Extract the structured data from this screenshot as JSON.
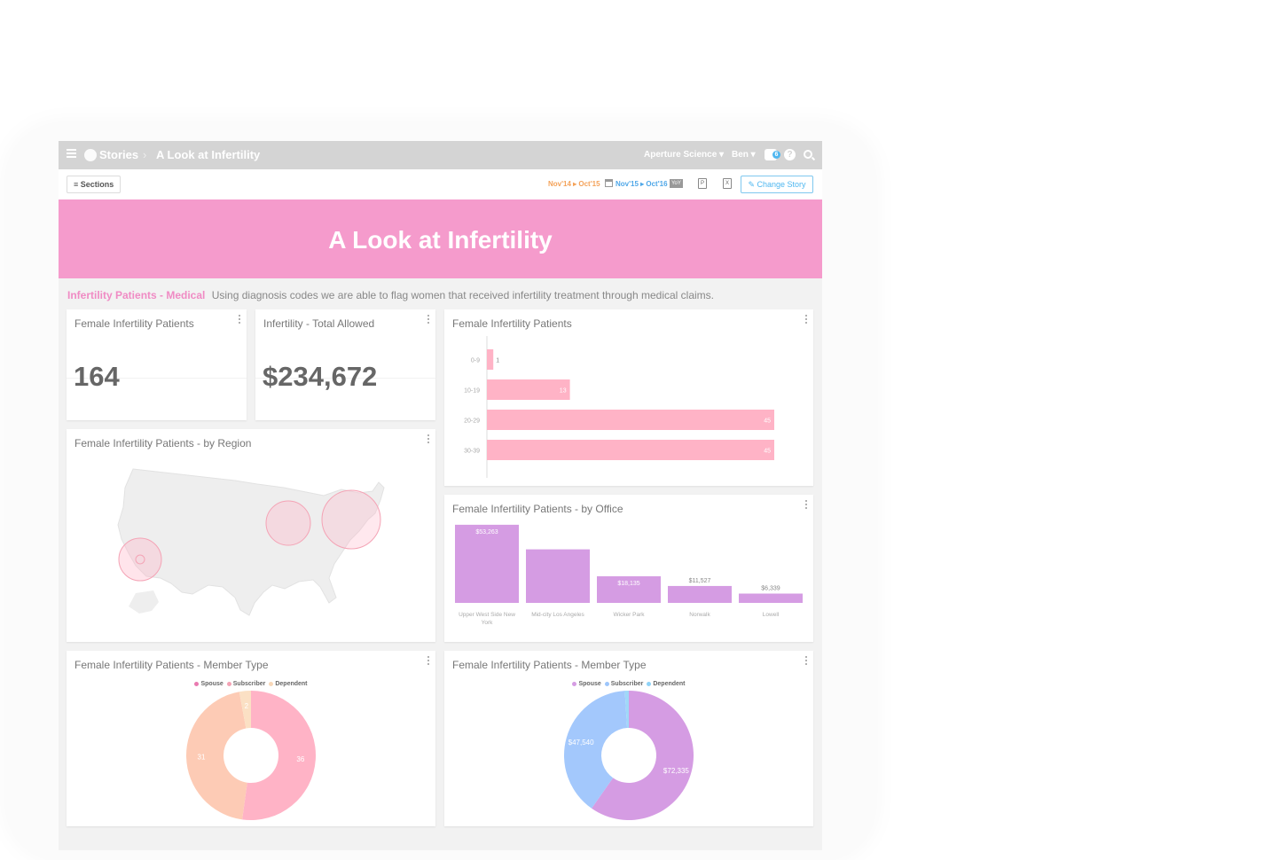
{
  "topbar": {
    "section": "Stories",
    "crumb": "A Look at Infertility",
    "org": "Aperture Science ▾",
    "user": "Ben ▾",
    "notif_count": "6",
    "help": "?"
  },
  "toolbar": {
    "sections_label": "≡ Sections",
    "range_primary": "Nov'14 ▸ Oct'15",
    "range_compare": "Nov'15 ▸ Oct'16",
    "yoy_badge": "YoY",
    "change_story_label": "Change Story"
  },
  "hero": {
    "title": "A Look at Infertility"
  },
  "section": {
    "title": "Infertility Patients - Medical",
    "description": "Using diagnosis codes we are able to flag women that received infertility treatment through medical claims."
  },
  "kpis": [
    {
      "title": "Female Infertility Patients",
      "value": "164"
    },
    {
      "title": "Infertility - Total Allowed",
      "value": "$234,672"
    }
  ],
  "map_card": {
    "title": "Female Infertility Patients - by Region",
    "bubbles": [
      "west",
      "midwest",
      "northeast"
    ]
  },
  "chart_data": [
    {
      "type": "bar",
      "orientation": "horizontal",
      "title": "Female Infertility Patients",
      "categories": [
        "0-9",
        "10-19",
        "20-29",
        "30-39"
      ],
      "values": [
        1,
        13,
        45,
        45
      ],
      "value_labels": [
        "1",
        "13",
        "45",
        "45"
      ],
      "color": "#ffb3c6",
      "xlim": [
        0,
        50
      ]
    },
    {
      "type": "bar",
      "title": "Female Infertility Patients - by Office",
      "categories": [
        "Upper West Side New York",
        "Mid-city Los Angeles",
        "Wicker Park",
        "Norwalk",
        "Lowell"
      ],
      "values": [
        53263,
        36500,
        18135,
        11527,
        6339
      ],
      "value_labels": [
        "$53,263",
        "",
        "$18,135",
        "$11,527",
        "$6,339"
      ],
      "color": "#d59ce3",
      "ylim": [
        0,
        55000
      ]
    },
    {
      "type": "pie",
      "title": "Female Infertility Patients - Member Type",
      "legend": [
        "Spouse",
        "Subscriber",
        "Dependent"
      ],
      "legend_colors": [
        "#e97ab0",
        "#f4a3b5",
        "#f8d8b8"
      ],
      "values": [
        36,
        31,
        2
      ],
      "value_labels": [
        "36",
        "31",
        "2"
      ],
      "colors": [
        "#ffb3c6",
        "#fdcbb5",
        "#fbe0c4"
      ]
    },
    {
      "type": "pie",
      "title": "Female Infertility Patients - Member Type",
      "legend": [
        "Spouse",
        "Subscriber",
        "Dependent"
      ],
      "legend_colors": [
        "#d59ce3",
        "#9ec6fb",
        "#8fd3f7"
      ],
      "values": [
        72335,
        47540,
        1200
      ],
      "value_labels": [
        "$72,335",
        "$47,540",
        ""
      ],
      "colors": [
        "#d59ce3",
        "#a3c8fc",
        "#9fd8f8"
      ]
    }
  ]
}
